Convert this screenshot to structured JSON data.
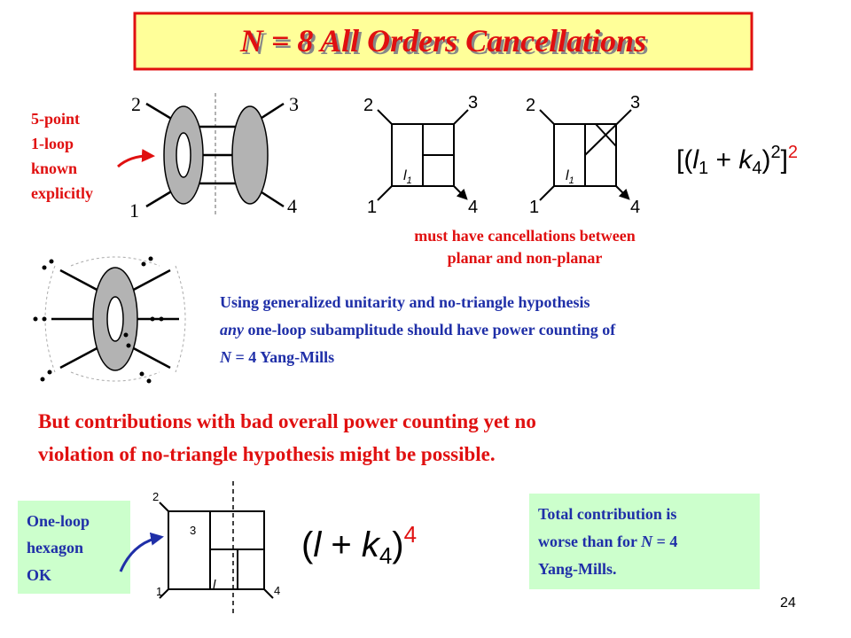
{
  "title": "N = 8 All Orders Cancellations",
  "five_point_note": [
    "5-point",
    "1-loop",
    "known",
    "explicitly"
  ],
  "pentagon_diagram": {
    "legs": [
      "2",
      "3",
      "1",
      "4"
    ]
  },
  "planar_diagrams": [
    {
      "legs": [
        "2",
        "3",
        "1",
        "4"
      ],
      "loop": "l",
      "loop_sub": "1"
    },
    {
      "legs": [
        "2",
        "3",
        "1",
        "4"
      ],
      "loop": "l",
      "loop_sub": "1"
    }
  ],
  "formula_top": {
    "open": "[(",
    "var1": "l",
    "sub1": "1",
    "op": " + ",
    "var2": "k",
    "sub2": "4",
    "close_inner": ")",
    "power_inner": "2",
    "close_outer": "]",
    "power_outer": "2"
  },
  "caption": [
    "must have cancellations between",
    "planar and non-planar"
  ],
  "unitarity_text": {
    "line1": "Using generalized unitarity and no-triangle hypothesis",
    "line2_italic": "any",
    "line2_rest": " one-loop subamplitude should have power counting of",
    "line3_italic": "N",
    "line3_rest": " = 4 Yang-Mills"
  },
  "warning": [
    "But contributions with bad overall power counting yet no",
    "violation of no-triangle hypothesis might be possible."
  ],
  "hexagon_note": [
    "One-loop",
    "hexagon",
    "OK"
  ],
  "hexagon_diagram": {
    "legs": [
      "2",
      "3",
      "1",
      "4"
    ],
    "loop": "l"
  },
  "formula_bottom": {
    "open": "(",
    "var1": "l",
    "op": " + ",
    "var2": "k",
    "sub2": "4",
    "close": ")",
    "power": "4"
  },
  "total_note": {
    "line1": "Total contribution is",
    "line2_start": "worse than for ",
    "line2_italic": "N",
    "line2_end": " = 4",
    "line3": "Yang-Mills."
  },
  "page_number": "24"
}
